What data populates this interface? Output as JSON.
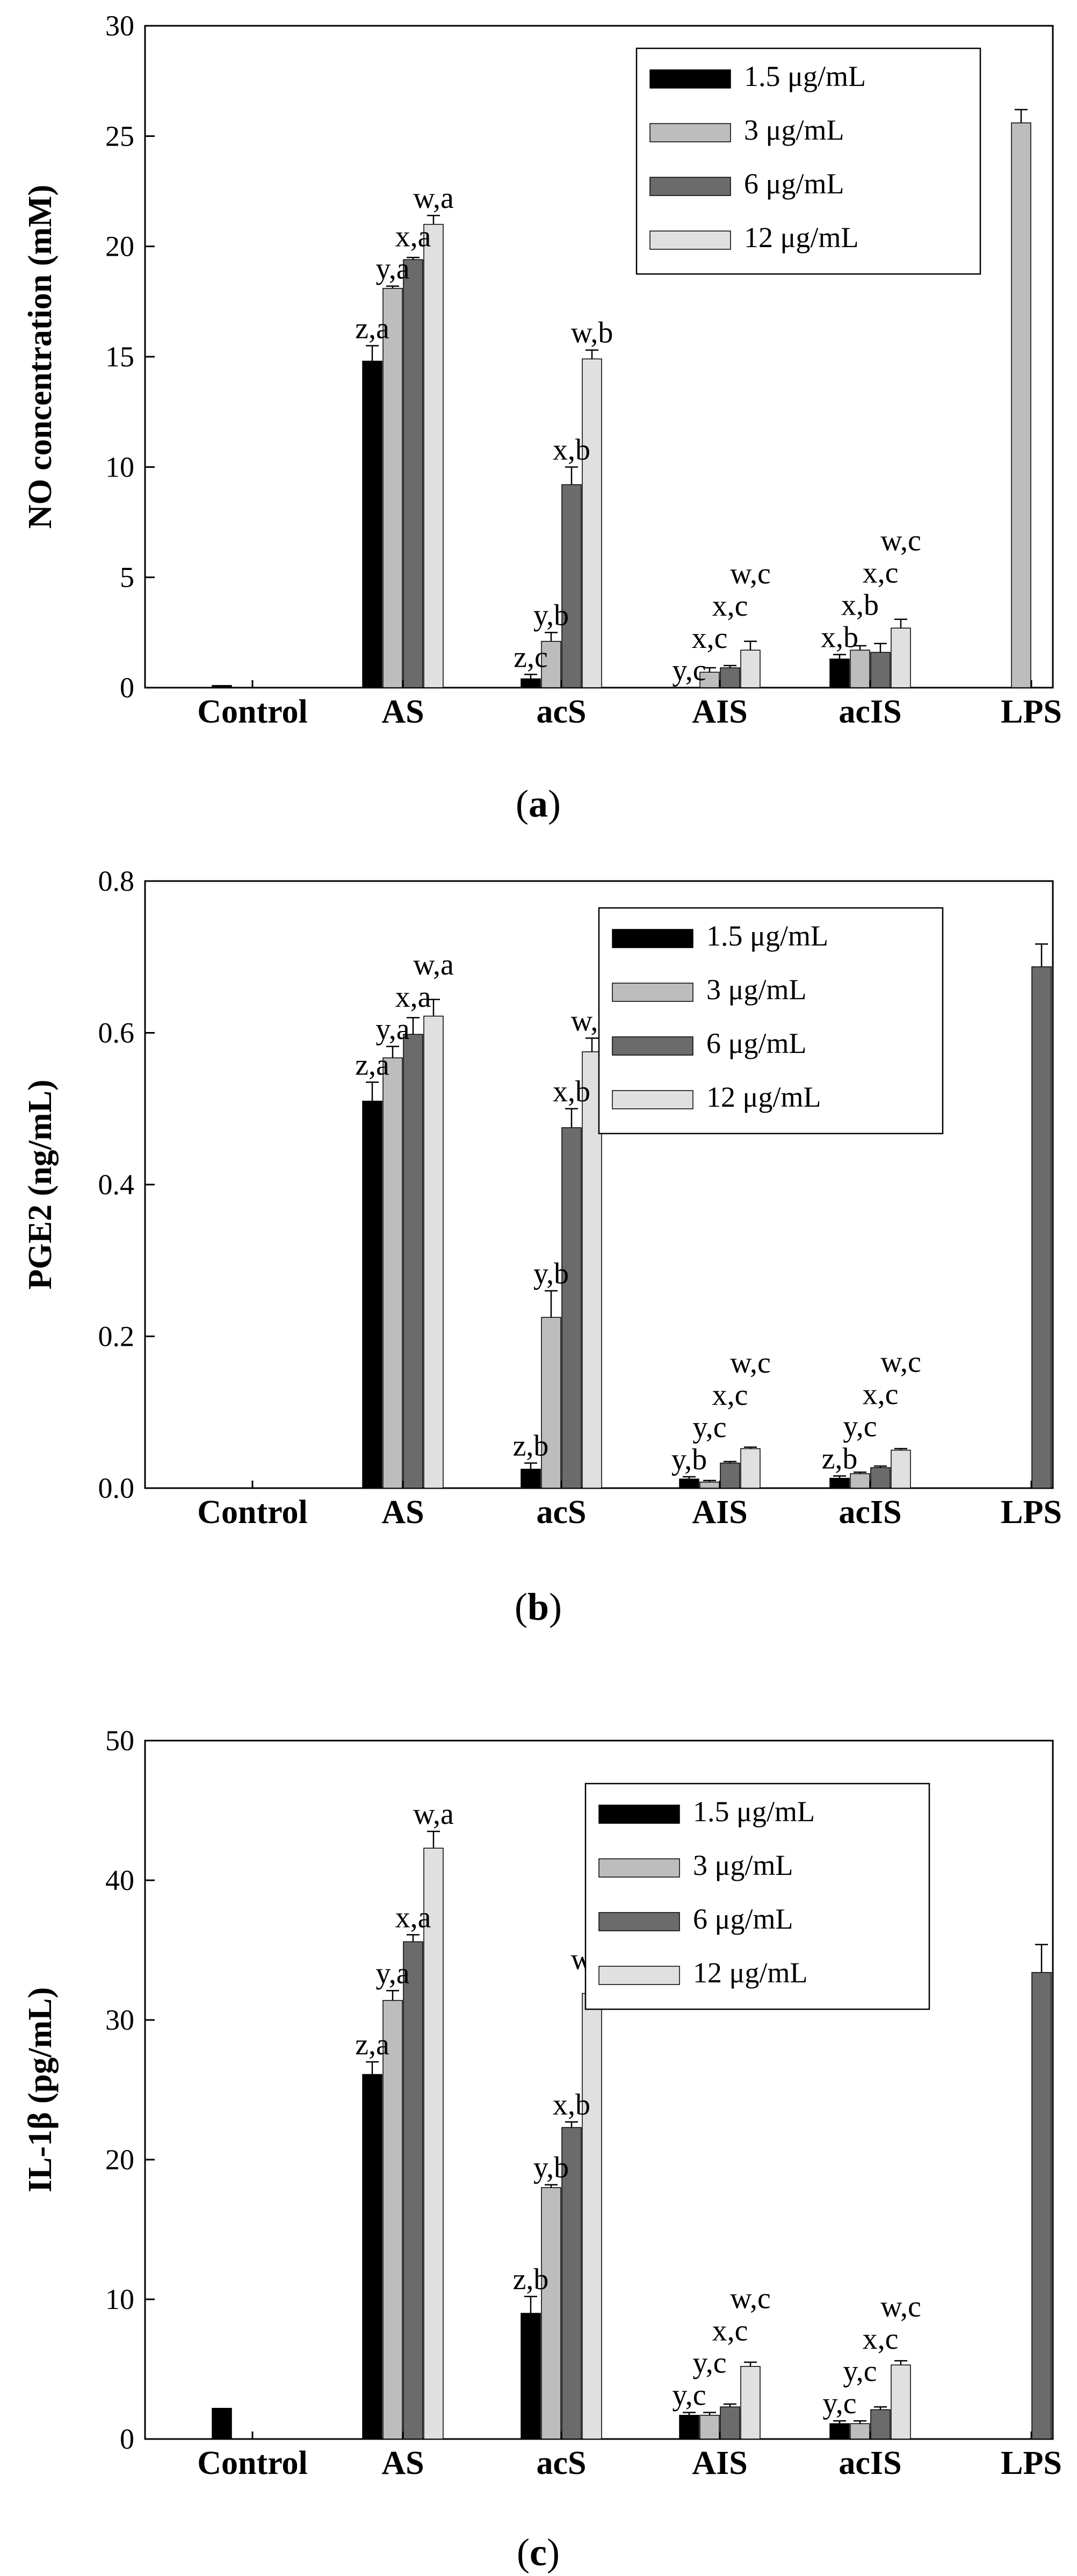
{
  "colors": {
    "s1": "#000000",
    "s2": "#bdbdbd",
    "s3": "#6b6b6b",
    "s4": "#e0e0e0",
    "axis": "#000000"
  },
  "chart_data": [
    {
      "type": "bar",
      "panel_label": "a",
      "ylabel": "NO concentration (mM)",
      "ylim": [
        0,
        30
      ],
      "yticks": [
        0,
        5,
        10,
        15,
        20,
        25,
        30
      ],
      "categories": [
        "Control",
        "AS",
        "acS",
        "AIS",
        "acIS",
        "LPS"
      ],
      "legend": {
        "position": "top-right",
        "entries": [
          "1.5 μg/mL",
          "3 μg/mL",
          "6 μg/mL",
          "12 μg/mL"
        ]
      },
      "series": [
        {
          "name": "1.5 μg/mL",
          "values": [
            0.1,
            14.8,
            0.4,
            null,
            1.3,
            null
          ],
          "errors": [
            0,
            0.7,
            0.2,
            0,
            0.2,
            0
          ]
        },
        {
          "name": "3 μg/mL",
          "values": [
            null,
            18.1,
            2.1,
            0.7,
            1.7,
            25.6
          ],
          "errors": [
            0,
            0.1,
            0.4,
            0.2,
            0.2,
            0.6
          ]
        },
        {
          "name": "6 μg/mL",
          "values": [
            null,
            19.4,
            9.2,
            0.9,
            1.6,
            null
          ],
          "errors": [
            0,
            0.1,
            0.8,
            0.1,
            0.4,
            0
          ]
        },
        {
          "name": "12 μg/mL",
          "values": [
            null,
            21.0,
            14.9,
            1.7,
            2.7,
            null
          ],
          "errors": [
            0,
            0.4,
            0.4,
            0.4,
            0.4,
            0
          ]
        }
      ],
      "annotations": [
        {
          "category": 1,
          "series": 0,
          "text": "z,a"
        },
        {
          "category": 1,
          "series": 1,
          "text": "y,a"
        },
        {
          "category": 1,
          "series": 2,
          "text": "x,a"
        },
        {
          "category": 1,
          "series": 3,
          "text": "w,a"
        },
        {
          "category": 2,
          "series": 0,
          "text": "z,c"
        },
        {
          "category": 2,
          "series": 1,
          "text": "y,b"
        },
        {
          "category": 2,
          "series": 2,
          "text": "x,b"
        },
        {
          "category": 2,
          "series": 3,
          "text": "w,b"
        },
        {
          "category": 3,
          "series": 0,
          "text": "y,c"
        },
        {
          "category": 3,
          "series": 1,
          "text": "x,c"
        },
        {
          "category": 3,
          "series": 2,
          "text": "x,c"
        },
        {
          "category": 3,
          "series": 3,
          "text": "w,c"
        },
        {
          "category": 4,
          "series": 0,
          "text": "x,b"
        },
        {
          "category": 4,
          "series": 1,
          "text": "x,b"
        },
        {
          "category": 4,
          "series": 2,
          "text": "x,c"
        },
        {
          "category": 4,
          "series": 3,
          "text": "w,c"
        }
      ]
    },
    {
      "type": "bar",
      "panel_label": "b",
      "ylabel": "PGE2 (ng/mL)",
      "ylim": [
        0,
        0.8
      ],
      "yticks": [
        "0.0",
        "0.2",
        "0.4",
        "0.6",
        "0.8"
      ],
      "categories": [
        "Control",
        "AS",
        "acS",
        "AIS",
        "acIS",
        "LPS"
      ],
      "legend": {
        "position": "top-right",
        "entries": [
          "1.5 μg/mL",
          "3 μg/mL",
          "6 μg/mL",
          "12 μg/mL"
        ]
      },
      "series": [
        {
          "name": "1.5 μg/mL",
          "values": [
            null,
            0.51,
            0.025,
            0.012,
            0.013,
            null
          ],
          "errors": [
            0,
            0.025,
            0.008,
            0.003,
            0.003,
            0
          ]
        },
        {
          "name": "3 μg/mL",
          "values": [
            null,
            0.567,
            0.225,
            0.008,
            0.019,
            null
          ],
          "errors": [
            0,
            0.015,
            0.035,
            0.002,
            0.002,
            0
          ]
        },
        {
          "name": "6 μg/mL",
          "values": [
            null,
            0.598,
            0.475,
            0.033,
            0.027,
            0.687
          ],
          "errors": [
            0,
            0.022,
            0.025,
            0.002,
            0.002,
            0.03
          ]
        },
        {
          "name": "12 μg/mL",
          "values": [
            null,
            0.622,
            0.575,
            0.052,
            0.05,
            null
          ],
          "errors": [
            0,
            0.022,
            0.018,
            0.002,
            0.002,
            0
          ]
        }
      ],
      "annotations": [
        {
          "category": 1,
          "series": 0,
          "text": "z,a"
        },
        {
          "category": 1,
          "series": 1,
          "text": "y,a"
        },
        {
          "category": 1,
          "series": 2,
          "text": "x,a"
        },
        {
          "category": 1,
          "series": 3,
          "text": "w,a"
        },
        {
          "category": 2,
          "series": 0,
          "text": "z,b"
        },
        {
          "category": 2,
          "series": 1,
          "text": "y,b"
        },
        {
          "category": 2,
          "series": 2,
          "text": "x,b"
        },
        {
          "category": 2,
          "series": 3,
          "text": "w,b"
        },
        {
          "category": 3,
          "series": 0,
          "text": "y,b"
        },
        {
          "category": 3,
          "series": 1,
          "text": "y,c"
        },
        {
          "category": 3,
          "series": 2,
          "text": "x,c"
        },
        {
          "category": 3,
          "series": 3,
          "text": "w,c"
        },
        {
          "category": 4,
          "series": 0,
          "text": "z,b"
        },
        {
          "category": 4,
          "series": 1,
          "text": "y,c"
        },
        {
          "category": 4,
          "series": 2,
          "text": "x,c"
        },
        {
          "category": 4,
          "series": 3,
          "text": "w,c"
        }
      ]
    },
    {
      "type": "bar",
      "panel_label": "c",
      "ylabel": "IL-1β (pg/mL)",
      "ylim": [
        0,
        50
      ],
      "yticks": [
        0,
        10,
        20,
        30,
        40,
        50
      ],
      "categories": [
        "Control",
        "AS",
        "acS",
        "AIS",
        "acIS",
        "LPS"
      ],
      "legend": {
        "position": "top-right",
        "entries": [
          "1.5 μg/mL",
          "3 μg/mL",
          "6 μg/mL",
          "12 μg/mL"
        ]
      },
      "series": [
        {
          "name": "1.5 μg/mL",
          "values": [
            2.2,
            26.1,
            9.0,
            1.7,
            1.1,
            null
          ],
          "errors": [
            0,
            0.9,
            1.2,
            0.2,
            0.2,
            0
          ]
        },
        {
          "name": "3 μg/mL",
          "values": [
            null,
            31.4,
            18.0,
            1.7,
            1.1,
            null
          ],
          "errors": [
            0,
            0.7,
            0.2,
            0.2,
            0.2,
            0
          ]
        },
        {
          "name": "6 μg/mL",
          "values": [
            null,
            35.6,
            22.3,
            2.3,
            2.1,
            33.4
          ],
          "errors": [
            0,
            0.5,
            0.4,
            0.2,
            0.2,
            2.0
          ]
        },
        {
          "name": "12 μg/mL",
          "values": [
            null,
            42.3,
            31.9,
            5.2,
            5.3,
            null
          ],
          "errors": [
            0,
            1.2,
            1.2,
            0.3,
            0.3,
            0
          ]
        }
      ],
      "annotations": [
        {
          "category": 1,
          "series": 0,
          "text": "z,a"
        },
        {
          "category": 1,
          "series": 1,
          "text": "y,a"
        },
        {
          "category": 1,
          "series": 2,
          "text": "x,a"
        },
        {
          "category": 1,
          "series": 3,
          "text": "w,a"
        },
        {
          "category": 2,
          "series": 0,
          "text": "z,b"
        },
        {
          "category": 2,
          "series": 1,
          "text": "y,b"
        },
        {
          "category": 2,
          "series": 2,
          "text": "x,b"
        },
        {
          "category": 2,
          "series": 3,
          "text": "w,b"
        },
        {
          "category": 3,
          "series": 0,
          "text": "y,c"
        },
        {
          "category": 3,
          "series": 1,
          "text": "y,c"
        },
        {
          "category": 3,
          "series": 2,
          "text": "x,c"
        },
        {
          "category": 3,
          "series": 3,
          "text": "w,c"
        },
        {
          "category": 4,
          "series": 0,
          "text": "y,c"
        },
        {
          "category": 4,
          "series": 1,
          "text": "y,c"
        },
        {
          "category": 4,
          "series": 2,
          "text": "x,c"
        },
        {
          "category": 4,
          "series": 3,
          "text": "w,c"
        }
      ]
    }
  ]
}
